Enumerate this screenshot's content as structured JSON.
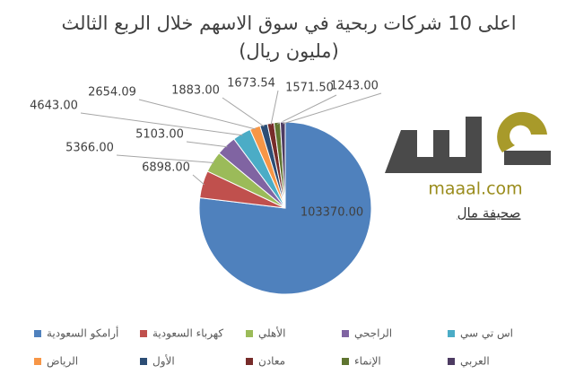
{
  "chart_data": {
    "type": "pie",
    "title": "اعلى 10 شركات ربحية في سوق الاسهم خلال الربع الثالث",
    "subtitle": "(مليون ريال)",
    "categories": [
      "أرامكو السعودية",
      "كهرباء السعودية",
      "الأهلي",
      "الراجحي",
      "اس تي سي",
      "الرياض",
      "الأول",
      "معادن",
      "الإنماء",
      "العربي"
    ],
    "values": [
      103370,
      6898,
      5366,
      5103,
      4643,
      2654.09,
      1883,
      1673.54,
      1571.5,
      1243
    ],
    "value_labels": [
      "103370.00",
      "6898.00",
      "5366.00",
      "5103.00",
      "4643.00",
      "2654.09",
      "1883.00",
      "1673.54",
      "1571.50",
      "1243.00"
    ],
    "colors": [
      "#4f81bd",
      "#c0504d",
      "#9bbb59",
      "#8064a2",
      "#4bacc6",
      "#f79646",
      "#2c4d75",
      "#772c2a",
      "#5f7530",
      "#4d3b62"
    ]
  },
  "logo": {
    "site": "maaal.com",
    "name": "صحيفة مال"
  }
}
